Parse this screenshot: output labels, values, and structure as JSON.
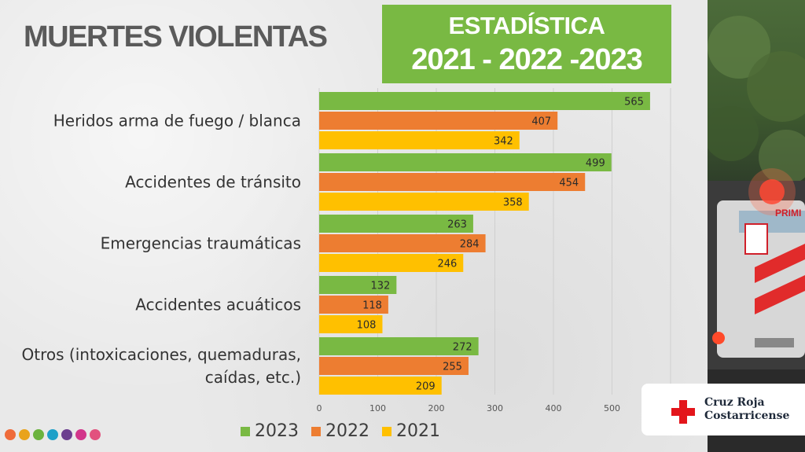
{
  "header": {
    "title": "MUERTES VIOLENTAS",
    "stat_line1": "ESTADÍSTICA",
    "stat_line2": "2021 - 2022 -2023"
  },
  "org": {
    "name_line1": "Cruz Roja",
    "name_line2": "Costarricense"
  },
  "colors": {
    "green": "#79b943",
    "orange": "#ed7d31",
    "yellow": "#ffc000",
    "red_cross": "#e3151b",
    "dots": [
      "#ef6b3a",
      "#e9a31b",
      "#6bb33e",
      "#1ea0c8",
      "#6c3f8f",
      "#d2368b",
      "#e2527e"
    ]
  },
  "chart_data": {
    "type": "bar",
    "orientation": "horizontal",
    "categories": [
      [
        "Heridos arma de fuego / blanca"
      ],
      [
        "Accidentes de tránsito"
      ],
      [
        "Emergencias traumáticas"
      ],
      [
        "Accidentes acuáticos"
      ],
      [
        "Otros (intoxicaciones, quemaduras,",
        "caídas, etc.)"
      ]
    ],
    "series": [
      {
        "name": "2023",
        "color": "#79b943",
        "values": [
          565,
          499,
          263,
          132,
          272
        ]
      },
      {
        "name": "2022",
        "color": "#ed7d31",
        "values": [
          407,
          454,
          284,
          118,
          255
        ]
      },
      {
        "name": "2021",
        "color": "#ffc000",
        "values": [
          342,
          358,
          246,
          108,
          209
        ]
      }
    ],
    "xlim": [
      0,
      600
    ],
    "xticks": [
      0,
      100,
      200,
      300,
      400,
      500
    ],
    "grid": true,
    "legend": "bottom"
  }
}
